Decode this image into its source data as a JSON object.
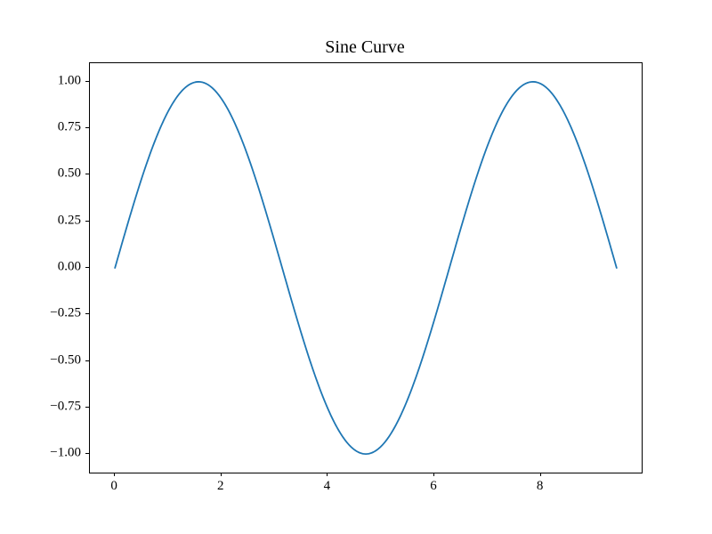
{
  "figure": {
    "background_color": "#ffffff",
    "frame_color": "#000000"
  },
  "chart_data": {
    "type": "line",
    "title": "Sine Curve",
    "xlabel": "",
    "ylabel": "",
    "formula": "y = sin(x)",
    "x_start": 0,
    "x_end": 9.42477796,
    "num_points": 400,
    "xlim": [
      -0.4712,
      9.896
    ],
    "ylim": [
      -1.1,
      1.1
    ],
    "grid": false,
    "legend": null,
    "line_color": "#1f77b4",
    "line_width": 1.8,
    "xticks": {
      "values": [
        0,
        2,
        4,
        6,
        8
      ],
      "labels": [
        "0",
        "2",
        "4",
        "6",
        "8"
      ]
    },
    "yticks": {
      "values": [
        -1.0,
        -0.75,
        -0.5,
        -0.25,
        0.0,
        0.25,
        0.5,
        0.75,
        1.0
      ],
      "labels": [
        "−1.00",
        "−0.75",
        "−0.50",
        "−0.25",
        "0.00",
        "0.25",
        "0.50",
        "0.75",
        "1.00"
      ]
    },
    "key_points": [
      {
        "x": 0.0,
        "y": 0.0
      },
      {
        "x": 1.5708,
        "y": 1.0
      },
      {
        "x": 3.1416,
        "y": 0.0
      },
      {
        "x": 4.7124,
        "y": -1.0
      },
      {
        "x": 6.2832,
        "y": 0.0
      },
      {
        "x": 7.854,
        "y": 1.0
      },
      {
        "x": 9.4248,
        "y": 0.0
      }
    ]
  }
}
